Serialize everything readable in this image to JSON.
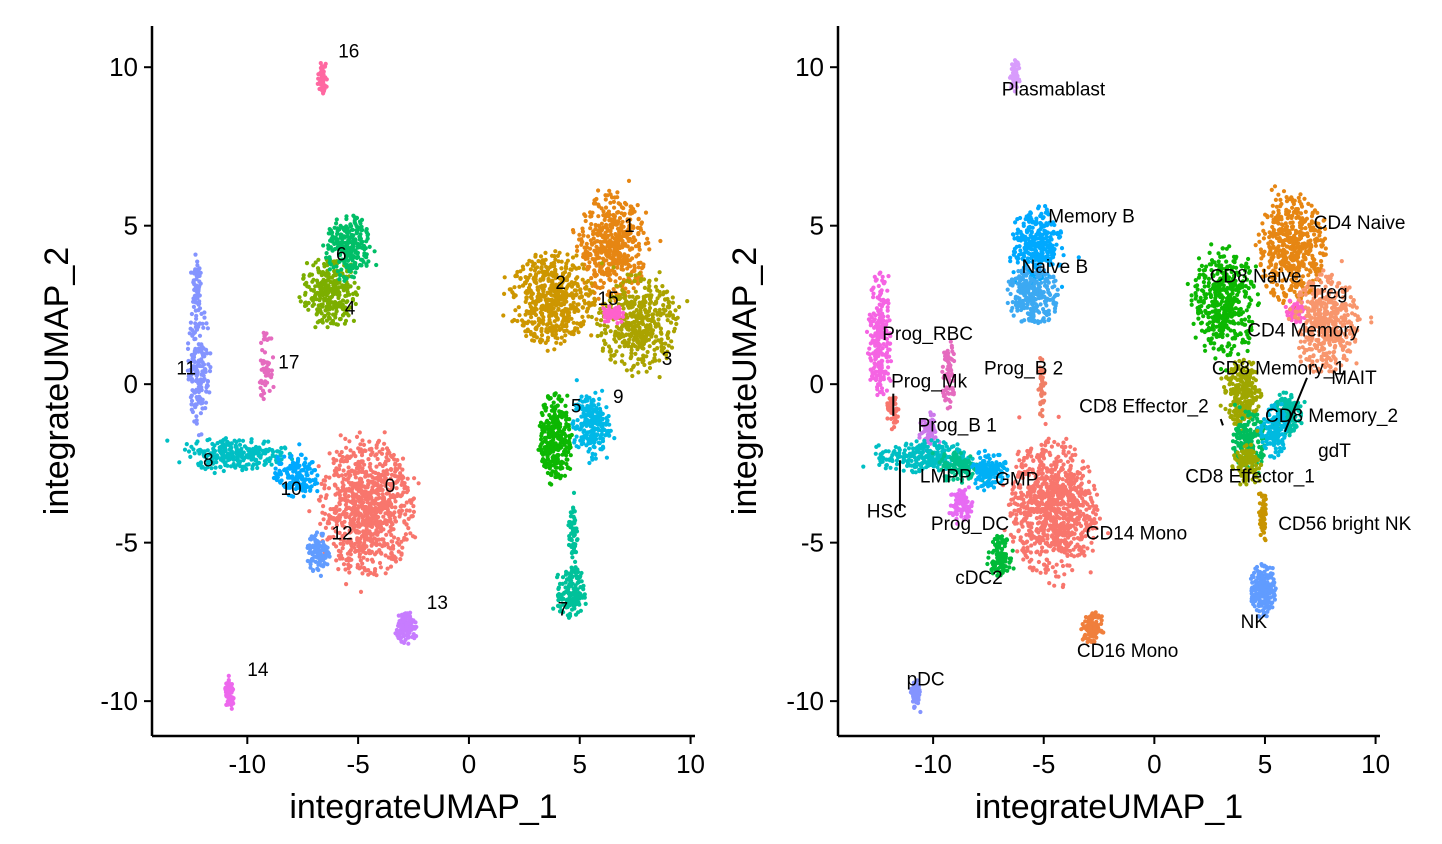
{
  "chart_data": [
    {
      "type": "scatter",
      "xlabel": "integrateUMAP_1",
      "ylabel": "integrateUMAP_2",
      "xlim": [
        -14.3,
        10.2
      ],
      "ylim": [
        -11.1,
        11.3
      ],
      "xticks": [
        -10,
        -5,
        0,
        5,
        10
      ],
      "yticks": [
        -10,
        -5,
        0,
        5,
        10
      ],
      "grid": false,
      "clusters": [
        {
          "label": "0",
          "color": "#F8766D",
          "label_pos": [
            -3.8,
            -3.4
          ],
          "blobs": [
            {
              "cx": -4.6,
              "cy": -3.9,
              "rx": 2.0,
              "ry": 2.0,
              "n": 900
            }
          ]
        },
        {
          "label": "1",
          "color": "#E68613",
          "label_pos": [
            7.0,
            4.8
          ],
          "blobs": [
            {
              "cx": 6.5,
              "cy": 4.3,
              "rx": 1.5,
              "ry": 1.6,
              "n": 500
            }
          ]
        },
        {
          "label": "2",
          "color": "#CD9600",
          "label_pos": [
            3.9,
            3.0
          ],
          "blobs": [
            {
              "cx": 3.8,
              "cy": 2.7,
              "rx": 1.8,
              "ry": 1.4,
              "n": 550
            }
          ]
        },
        {
          "label": "3",
          "color": "#ABA300",
          "label_pos": [
            8.7,
            0.6
          ],
          "blobs": [
            {
              "cx": 7.6,
              "cy": 1.9,
              "rx": 1.7,
              "ry": 1.5,
              "n": 450
            }
          ]
        },
        {
          "label": "4",
          "color": "#7CAE00",
          "label_pos": [
            -5.6,
            2.2
          ],
          "blobs": [
            {
              "cx": -6.3,
              "cy": 2.9,
              "rx": 1.2,
              "ry": 1.0,
              "n": 300
            }
          ]
        },
        {
          "label": "5",
          "color": "#0CB702",
          "label_pos": [
            4.6,
            -0.9
          ],
          "blobs": [
            {
              "cx": 3.9,
              "cy": -1.7,
              "rx": 0.7,
              "ry": 1.4,
              "n": 300
            }
          ]
        },
        {
          "label": "6",
          "color": "#00BE67",
          "label_pos": [
            -6.0,
            3.9
          ],
          "blobs": [
            {
              "cx": -5.4,
              "cy": 4.3,
              "rx": 1.0,
              "ry": 1.0,
              "n": 250
            }
          ]
        },
        {
          "label": "7",
          "color": "#00C19A",
          "label_pos": [
            4.0,
            -7.3
          ],
          "blobs": [
            {
              "cx": 4.6,
              "cy": -6.6,
              "rx": 0.6,
              "ry": 0.8,
              "n": 150
            },
            {
              "cx": 4.7,
              "cy": -4.7,
              "rx": 0.2,
              "ry": 1.2,
              "n": 60
            }
          ]
        },
        {
          "label": "8",
          "color": "#00BFC4",
          "label_pos": [
            -12.0,
            -2.6
          ],
          "blobs": [
            {
              "cx": -10.5,
              "cy": -2.2,
              "rx": 2.3,
              "ry": 0.5,
              "n": 280
            }
          ]
        },
        {
          "label": "9",
          "color": "#00B8E7",
          "label_pos": [
            6.5,
            -0.6
          ],
          "blobs": [
            {
              "cx": 5.5,
              "cy": -1.3,
              "rx": 0.8,
              "ry": 1.0,
              "n": 220
            }
          ]
        },
        {
          "label": "10",
          "color": "#00A9FF",
          "label_pos": [
            -8.5,
            -3.5
          ],
          "blobs": [
            {
              "cx": -7.8,
              "cy": -2.9,
              "rx": 1.0,
              "ry": 0.7,
              "n": 150
            }
          ]
        },
        {
          "label": "11",
          "color": "#8494FF",
          "label_pos": [
            -13.2,
            0.3
          ],
          "blobs": [
            {
              "cx": -12.2,
              "cy": 0.6,
              "rx": 0.5,
              "ry": 1.8,
              "n": 180
            },
            {
              "cx": -12.3,
              "cy": 3.2,
              "rx": 0.2,
              "ry": 0.9,
              "n": 50
            }
          ]
        },
        {
          "label": "12",
          "color": "#619CFF",
          "label_pos": [
            -6.2,
            -4.9
          ],
          "blobs": [
            {
              "cx": -6.8,
              "cy": -5.3,
              "rx": 0.5,
              "ry": 0.6,
              "n": 110
            }
          ]
        },
        {
          "label": "13",
          "color": "#C77CFF",
          "label_pos": [
            -1.9,
            -7.1
          ],
          "blobs": [
            {
              "cx": -2.8,
              "cy": -7.7,
              "rx": 0.45,
              "ry": 0.45,
              "n": 120
            }
          ]
        },
        {
          "label": "14",
          "color": "#ED68ED",
          "label_pos": [
            -10.0,
            -9.2
          ],
          "blobs": [
            {
              "cx": -10.8,
              "cy": -9.8,
              "rx": 0.22,
              "ry": 0.45,
              "n": 70
            }
          ]
        },
        {
          "label": "15",
          "color": "#FF61CC",
          "label_pos": [
            5.8,
            2.5
          ],
          "blobs": [
            {
              "cx": 6.5,
              "cy": 2.2,
              "rx": 0.5,
              "ry": 0.3,
              "n": 60
            }
          ]
        },
        {
          "label": "16",
          "color": "#FF68A1",
          "label_pos": [
            -5.9,
            10.3
          ],
          "blobs": [
            {
              "cx": -6.6,
              "cy": 9.7,
              "rx": 0.2,
              "ry": 0.5,
              "n": 60
            }
          ]
        },
        {
          "label": "17",
          "color": "#E56BBF",
          "label_pos": [
            -8.6,
            0.5
          ],
          "blobs": [
            {
              "cx": -9.2,
              "cy": 0.6,
              "rx": 0.3,
              "ry": 1.0,
              "n": 50
            }
          ]
        }
      ]
    },
    {
      "type": "scatter",
      "xlabel": "integrateUMAP_1",
      "ylabel": "integrateUMAP_2",
      "xlim": [
        -14.3,
        10.2
      ],
      "ylim": [
        -11.1,
        11.3
      ],
      "xticks": [
        -10,
        -5,
        0,
        5,
        10
      ],
      "yticks": [
        -10,
        -5,
        0,
        5,
        10
      ],
      "grid": false,
      "clusters": [
        {
          "label": "Plasmablast",
          "color": "#D89CFC",
          "label_pos": [
            -6.9,
            9.1
          ],
          "blobs": [
            {
              "cx": -6.3,
              "cy": 9.7,
              "rx": 0.2,
              "ry": 0.5,
              "n": 60
            }
          ]
        },
        {
          "label": "Memory B",
          "color": "#00A9FF",
          "label_pos": [
            -4.8,
            5.1
          ],
          "blobs": [
            {
              "cx": -5.3,
              "cy": 4.4,
              "rx": 1.1,
              "ry": 1.1,
              "n": 300
            }
          ]
        },
        {
          "label": "Naive B",
          "color": "#3CA9F2",
          "label_pos": [
            -6.0,
            3.5
          ],
          "blobs": [
            {
              "cx": -5.5,
              "cy": 2.8,
              "rx": 1.1,
              "ry": 0.9,
              "n": 250
            }
          ]
        },
        {
          "label": "CD4 Naive",
          "color": "#E68613",
          "label_pos": [
            7.2,
            4.9
          ],
          "blobs": [
            {
              "cx": 6.2,
              "cy": 4.3,
              "rx": 1.5,
              "ry": 1.6,
              "n": 500
            }
          ]
        },
        {
          "label": "CD8 Naive",
          "color": "#0CB702",
          "label_pos": [
            2.5,
            3.2
          ],
          "blobs": [
            {
              "cx": 3.2,
              "cy": 2.6,
              "rx": 1.4,
              "ry": 1.6,
              "n": 450
            }
          ]
        },
        {
          "label": "Treg",
          "color": "#FF61CC",
          "label_pos": [
            7.0,
            2.7
          ],
          "blobs": [
            {
              "cx": 6.4,
              "cy": 2.3,
              "rx": 0.5,
              "ry": 0.35,
              "n": 60
            }
          ]
        },
        {
          "label": "CD4 Memory",
          "color": "#F8966D",
          "label_pos": [
            4.2,
            1.5
          ],
          "blobs": [
            {
              "cx": 7.8,
              "cy": 1.9,
              "rx": 1.4,
              "ry": 1.5,
              "n": 450
            }
          ]
        },
        {
          "label": "CD8 Memory_1",
          "color": "#9FA600",
          "label_pos": [
            2.6,
            0.3
          ],
          "blobs": [
            {
              "cx": 4.0,
              "cy": -0.3,
              "rx": 0.8,
              "ry": 1.0,
              "n": 250
            }
          ]
        },
        {
          "label": "MAIT",
          "color": "#00C1A7",
          "label_pos": [
            8.0,
            0.0
          ],
          "blobs": [
            {
              "cx": 6.0,
              "cy": -0.9,
              "rx": 0.6,
              "ry": 0.7,
              "n": 150
            }
          ]
        },
        {
          "label": "CD8 Memory_2",
          "color": "#00BD5C",
          "label_pos": [
            5.0,
            -1.2
          ],
          "blobs": [
            {
              "cx": 4.3,
              "cy": -1.8,
              "rx": 0.7,
              "ry": 0.9,
              "n": 200
            }
          ]
        },
        {
          "label": "gdT",
          "color": "#00BAE0",
          "label_pos": [
            7.4,
            -2.3
          ],
          "blobs": [
            {
              "cx": 5.4,
              "cy": -1.5,
              "rx": 0.6,
              "ry": 0.8,
              "n": 150
            }
          ]
        },
        {
          "label": "CD8 Effector_1",
          "color": "#9CA700",
          "label_pos": [
            1.4,
            -3.1
          ],
          "blobs": [
            {
              "cx": 4.2,
              "cy": -2.5,
              "rx": 0.6,
              "ry": 0.6,
              "n": 120
            }
          ]
        },
        {
          "label": "CD8 Effector_2",
          "color": "#F07F66",
          "label_pos": [
            -3.4,
            -0.9
          ],
          "blobs": [
            {
              "cx": -5.1,
              "cy": -0.1,
              "rx": 0.15,
              "ry": 0.9,
              "n": 40
            }
          ]
        },
        {
          "label": "CD56 bright NK",
          "color": "#C89400",
          "label_pos": [
            5.6,
            -4.6
          ],
          "blobs": [
            {
              "cx": 4.9,
              "cy": -4.2,
              "rx": 0.2,
              "ry": 0.8,
              "n": 50
            }
          ]
        },
        {
          "label": "NK",
          "color": "#619CFF",
          "label_pos": [
            3.9,
            -7.7
          ],
          "blobs": [
            {
              "cx": 4.9,
              "cy": -6.5,
              "rx": 0.55,
              "ry": 0.8,
              "n": 200
            }
          ]
        },
        {
          "label": "Prog_RBC",
          "color": "#F564E3",
          "label_pos": [
            -12.3,
            1.4
          ],
          "blobs": [
            {
              "cx": -12.4,
              "cy": 1.5,
              "rx": 0.5,
              "ry": 2.0,
              "n": 220
            }
          ]
        },
        {
          "label": "Prog_B 2",
          "color": "#E56BBF",
          "label_pos": [
            -7.7,
            0.3
          ],
          "blobs": [
            {
              "cx": -9.3,
              "cy": 0.3,
              "rx": 0.3,
              "ry": 1.1,
              "n": 70
            }
          ]
        },
        {
          "label": "Prog_Mk",
          "color": "#F8766D",
          "label_pos": [
            -11.9,
            -0.1
          ],
          "blobs": [
            {
              "cx": -11.8,
              "cy": -0.9,
              "rx": 0.3,
              "ry": 0.5,
              "n": 40
            }
          ]
        },
        {
          "label": "Prog_B 1",
          "color": "#CC79EB",
          "label_pos": [
            -10.7,
            -1.5
          ],
          "blobs": [
            {
              "cx": -10.2,
              "cy": -1.5,
              "rx": 0.4,
              "ry": 0.6,
              "n": 60
            }
          ]
        },
        {
          "label": "HSC",
          "color": "#00BFC4",
          "label_pos": [
            -13.0,
            -4.2
          ],
          "blobs": [
            {
              "cx": -10.5,
              "cy": -2.3,
              "rx": 2.0,
              "ry": 0.5,
              "n": 250
            }
          ]
        },
        {
          "label": "LMPP",
          "color": "#00C08B",
          "label_pos": [
            -10.6,
            -3.1
          ],
          "blobs": [
            {
              "cx": -8.8,
              "cy": -2.6,
              "rx": 0.9,
              "ry": 0.5,
              "n": 130
            }
          ]
        },
        {
          "label": "GMP",
          "color": "#00B0F6",
          "label_pos": [
            -7.2,
            -3.2
          ],
          "blobs": [
            {
              "cx": -7.5,
              "cy": -2.7,
              "rx": 0.8,
              "ry": 0.6,
              "n": 130
            }
          ]
        },
        {
          "label": "Prog_DC",
          "color": "#E76BF3",
          "label_pos": [
            -10.1,
            -4.6
          ],
          "blobs": [
            {
              "cx": -8.7,
              "cy": -3.8,
              "rx": 0.5,
              "ry": 0.5,
              "n": 80
            }
          ]
        },
        {
          "label": "CD14 Mono",
          "color": "#F8766D",
          "label_pos": [
            -3.1,
            -4.9
          ],
          "blobs": [
            {
              "cx": -4.6,
              "cy": -3.9,
              "rx": 1.9,
              "ry": 2.0,
              "n": 900
            }
          ]
        },
        {
          "label": "cDC2",
          "color": "#00BA38",
          "label_pos": [
            -9.0,
            -6.3
          ],
          "blobs": [
            {
              "cx": -7.0,
              "cy": -5.4,
              "rx": 0.5,
              "ry": 0.6,
              "n": 110
            }
          ]
        },
        {
          "label": "CD16 Mono",
          "color": "#F07F3C",
          "label_pos": [
            -3.5,
            -8.6
          ],
          "blobs": [
            {
              "cx": -2.8,
              "cy": -7.7,
              "rx": 0.45,
              "ry": 0.45,
              "n": 120
            }
          ]
        },
        {
          "label": "pDC",
          "color": "#8494FF",
          "label_pos": [
            -11.2,
            -9.5
          ],
          "blobs": [
            {
              "cx": -10.8,
              "cy": -9.8,
              "rx": 0.22,
              "ry": 0.45,
              "n": 70
            }
          ]
        }
      ],
      "leaders": [
        {
          "from": [
            -11.8,
            -0.3
          ],
          "to": [
            -11.8,
            -1.0
          ]
        },
        {
          "from": [
            -11.5,
            -2.4
          ],
          "to": [
            -11.5,
            -4.0
          ]
        },
        {
          "from": [
            6.9,
            0.2
          ],
          "to": [
            5.9,
            -1.5
          ]
        },
        {
          "from": [
            3.0,
            -1.1
          ],
          "to": [
            3.1,
            -1.3
          ]
        }
      ]
    }
  ]
}
